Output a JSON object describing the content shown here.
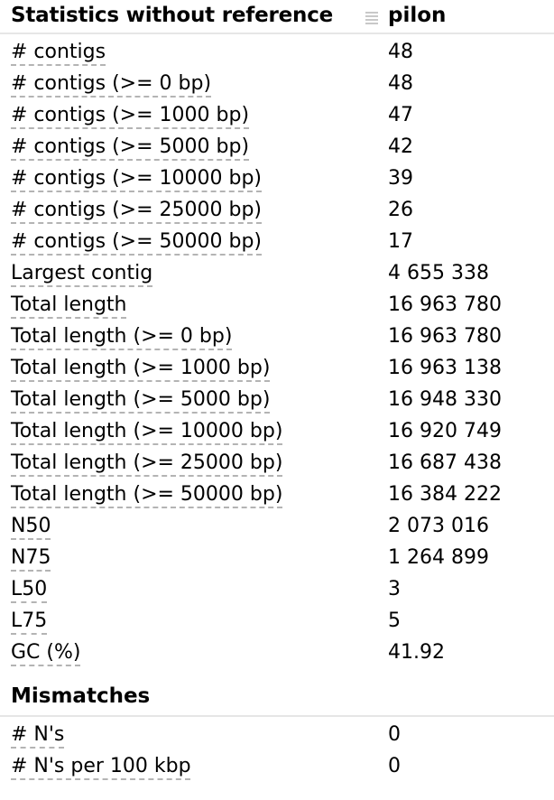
{
  "header": {
    "section_title": "Statistics without reference",
    "assembly_name": "pilon",
    "drag_icon": "drag-handle-icon",
    "colors": {
      "divider": "#e6e6e6",
      "underline": "#b4b4b4",
      "text": "#000000"
    }
  },
  "stats": [
    {
      "metric": "# contigs",
      "value": "48"
    },
    {
      "metric": "# contigs (>= 0 bp)",
      "value": "48"
    },
    {
      "metric": "# contigs (>= 1000 bp)",
      "value": "47"
    },
    {
      "metric": "# contigs (>= 5000 bp)",
      "value": "42"
    },
    {
      "metric": "# contigs (>= 10000 bp)",
      "value": "39"
    },
    {
      "metric": "# contigs (>= 25000 bp)",
      "value": "26"
    },
    {
      "metric": "# contigs (>= 50000 bp)",
      "value": "17"
    },
    {
      "metric": "Largest contig",
      "value": "4 655 338"
    },
    {
      "metric": "Total length",
      "value": "16 963 780"
    },
    {
      "metric": "Total length (>= 0 bp)",
      "value": "16 963 780"
    },
    {
      "metric": "Total length (>= 1000 bp)",
      "value": "16 963 138"
    },
    {
      "metric": "Total length (>= 5000 bp)",
      "value": "16 948 330"
    },
    {
      "metric": "Total length (>= 10000 bp)",
      "value": "16 920 749"
    },
    {
      "metric": "Total length (>= 25000 bp)",
      "value": "16 687 438"
    },
    {
      "metric": "Total length (>= 50000 bp)",
      "value": "16 384 222"
    },
    {
      "metric": "N50",
      "value": "2 073 016"
    },
    {
      "metric": "N75",
      "value": "1 264 899"
    },
    {
      "metric": "L50",
      "value": "3"
    },
    {
      "metric": "L75",
      "value": "5"
    },
    {
      "metric": "GC (%)",
      "value": "41.92"
    }
  ],
  "mismatches": {
    "title": "Mismatches",
    "rows": [
      {
        "metric": "# N's",
        "value": "0"
      },
      {
        "metric": "# N's per 100 kbp",
        "value": "0"
      }
    ]
  }
}
